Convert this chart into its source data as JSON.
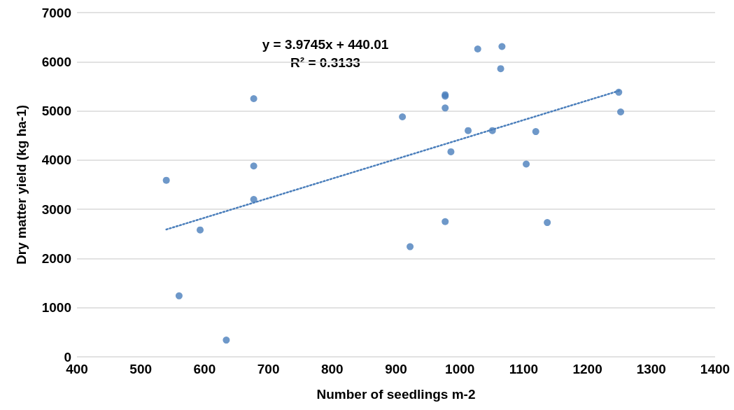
{
  "chart_data": {
    "type": "scatter",
    "xlabel": "Number of seedlings m-2",
    "ylabel": "Dry matter yield (kg ha-1)",
    "xlim": [
      400,
      1400
    ],
    "xticks": [
      400,
      500,
      600,
      700,
      800,
      900,
      1000,
      1100,
      1200,
      1300,
      1400
    ],
    "ylim": [
      0,
      7000
    ],
    "yticks": [
      0,
      1000,
      2000,
      3000,
      4000,
      5000,
      6000,
      7000
    ],
    "grid": "y",
    "marker": "circle",
    "annotations": [
      "y = 3.9745x + 440.01",
      "R² = 0.3133"
    ],
    "series": [
      {
        "color": "#4a7ebb",
        "x": [
          540,
          560,
          593,
          634,
          677,
          677,
          677,
          910,
          922,
          977,
          977,
          977,
          977,
          986,
          1013,
          1028,
          1051,
          1064,
          1066,
          1104,
          1119,
          1137,
          1249,
          1252
        ],
        "values": [
          3590,
          1240,
          2580,
          340,
          5250,
          3880,
          3200,
          4880,
          2240,
          2750,
          5330,
          5300,
          5060,
          4170,
          4600,
          6260,
          4600,
          5860,
          6310,
          3920,
          4580,
          2730,
          5380,
          4980
        ]
      },
      {
        "type": "line",
        "color": "#4a7ebb",
        "line_style": "dotted",
        "marker": "none",
        "x": [
          540,
          1252
        ],
        "values": [
          2590,
          5420
        ]
      }
    ]
  }
}
